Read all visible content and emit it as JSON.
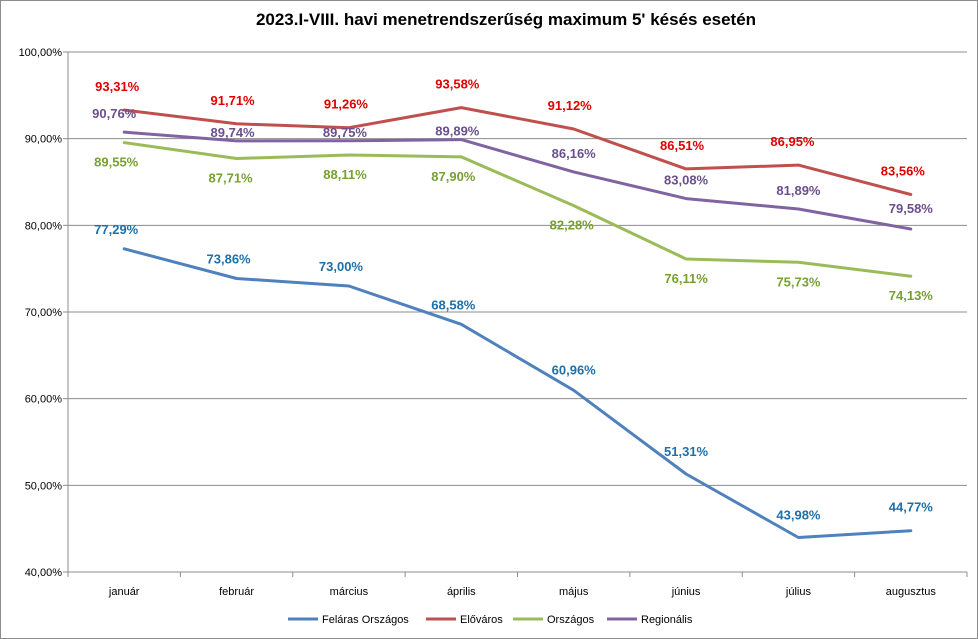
{
  "chart_data": {
    "type": "line",
    "title": "2023.I-VIII. havi menetrendszerűség maximum 5' késés esetén",
    "categories": [
      "január",
      "február",
      "március",
      "április",
      "május",
      "június",
      "július",
      "augusztus"
    ],
    "ylim": [
      40,
      100
    ],
    "yticks": [
      "40,00%",
      "50,00%",
      "60,00%",
      "70,00%",
      "80,00%",
      "90,00%",
      "100,00%"
    ],
    "ytick_values": [
      40,
      50,
      60,
      70,
      80,
      90,
      100
    ],
    "grid": true,
    "legend_position": "bottom",
    "series": [
      {
        "name": "Feláras Országos",
        "color": "#4f81bd",
        "label_color": "#1f6fa8",
        "values": [
          77.29,
          73.86,
          73.0,
          68.58,
          60.96,
          51.31,
          43.98,
          44.77
        ],
        "labels": [
          "77,29%",
          "73,86%",
          "73,00%",
          "68,58%",
          "60,96%",
          "51,31%",
          "43,98%",
          "44,77%"
        ]
      },
      {
        "name": "Előváros",
        "color": "#c0504d",
        "label_color": "#e00000",
        "values": [
          93.31,
          91.71,
          91.26,
          93.58,
          91.12,
          86.51,
          86.95,
          83.56
        ],
        "labels": [
          "93,31%",
          "91,71%",
          "91,26%",
          "93,58%",
          "91,12%",
          "86,51%",
          "86,95%",
          "83,56%"
        ]
      },
      {
        "name": "Országos",
        "color": "#9bbb59",
        "label_color": "#77a033",
        "values": [
          89.55,
          87.71,
          88.11,
          87.9,
          82.28,
          76.11,
          75.73,
          74.13
        ],
        "labels": [
          "89,55%",
          "87,71%",
          "88,11%",
          "87,90%",
          "82,28%",
          "76,11%",
          "75,73%",
          "74,13%"
        ]
      },
      {
        "name": "Regionális",
        "color": "#8064a2",
        "label_color": "#6a4f8c",
        "values": [
          90.76,
          89.74,
          89.75,
          89.89,
          86.16,
          83.08,
          81.89,
          79.58
        ],
        "labels": [
          "90,76%",
          "89,74%",
          "89,75%",
          "89,89%",
          "86,16%",
          "83,08%",
          "81,89%",
          "79,58%"
        ]
      }
    ]
  }
}
